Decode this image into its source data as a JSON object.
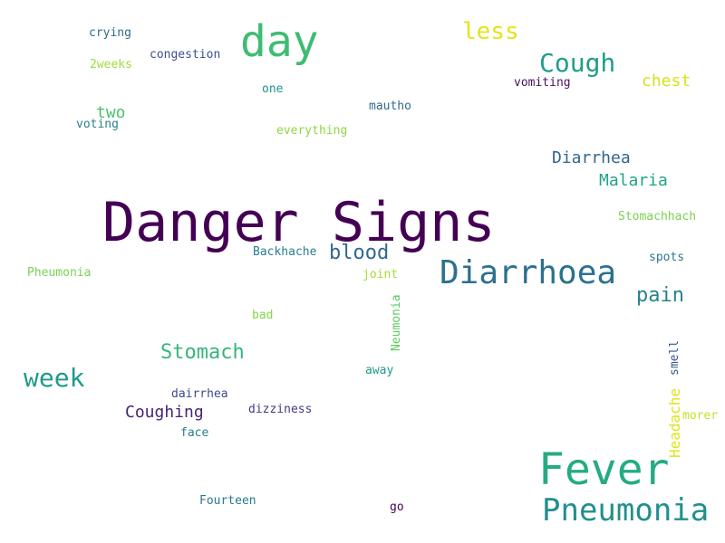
{
  "words": [
    {
      "text": "Danger Signs",
      "color": "#440154"
    },
    {
      "text": "day",
      "color": "#3fbc73"
    },
    {
      "text": "Fever",
      "color": "#25ab82"
    },
    {
      "text": "Diarrhoea",
      "color": "#2c718e"
    },
    {
      "text": "Pneumonia",
      "color": "#21908d"
    },
    {
      "text": "less",
      "color": "#e5e419"
    },
    {
      "text": "Cough",
      "color": "#1f9e89"
    },
    {
      "text": "week",
      "color": "#1e9b8a"
    },
    {
      "text": "Stomach",
      "color": "#35b779"
    },
    {
      "text": "blood",
      "color": "#31688e"
    },
    {
      "text": "pain",
      "color": "#26828e"
    },
    {
      "text": "Diarrhea",
      "color": "#31668e"
    },
    {
      "text": "Malaria",
      "color": "#20a486"
    },
    {
      "text": "Coughing",
      "color": "#482475"
    },
    {
      "text": "chest",
      "color": "#d8e219"
    },
    {
      "text": "two",
      "color": "#4ac16d"
    },
    {
      "text": "Headache",
      "color": "#e0e31a"
    },
    {
      "text": "crying",
      "color": "#2f6c8e"
    },
    {
      "text": "2weeks",
      "color": "#a0da39"
    },
    {
      "text": "congestion",
      "color": "#3b528b"
    },
    {
      "text": "one",
      "color": "#1f948c"
    },
    {
      "text": "vomiting",
      "color": "#471063"
    },
    {
      "text": "voting",
      "color": "#26818e"
    },
    {
      "text": "mautho",
      "color": "#2f6b8e"
    },
    {
      "text": "everything",
      "color": "#90d743"
    },
    {
      "text": "Stomachhach",
      "color": "#7ad151"
    },
    {
      "text": "Backhache",
      "color": "#277f8e"
    },
    {
      "text": "spots",
      "color": "#2a788e"
    },
    {
      "text": "Pheumonia",
      "color": "#7ad151"
    },
    {
      "text": "joint",
      "color": "#a5db36"
    },
    {
      "text": "Neumonia",
      "color": "#5ec962"
    },
    {
      "text": "bad",
      "color": "#86d549"
    },
    {
      "text": "smell",
      "color": "#39558c"
    },
    {
      "text": "away",
      "color": "#1f9a8a"
    },
    {
      "text": "dairrhea",
      "color": "#3e4a89"
    },
    {
      "text": "dizziness",
      "color": "#443a83"
    },
    {
      "text": "morer",
      "color": "#c5e021"
    },
    {
      "text": "face",
      "color": "#287c8e"
    },
    {
      "text": "Fourteen",
      "color": "#2a788e"
    },
    {
      "text": "go",
      "color": "#450559"
    }
  ]
}
